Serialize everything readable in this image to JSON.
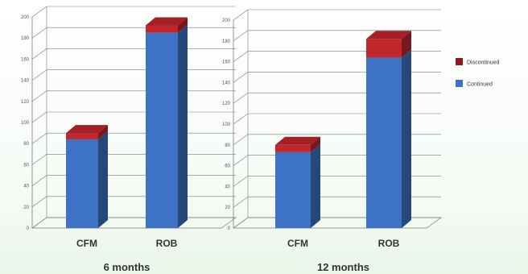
{
  "chart_data": [
    {
      "type": "bar",
      "stacked": true,
      "style": "3d",
      "categories": [
        "CFM",
        "ROB"
      ],
      "series": [
        {
          "name": "Continued",
          "values": [
            84,
            185
          ]
        },
        {
          "name": "Discontinued",
          "values": [
            6,
            7
          ]
        }
      ],
      "ylim": [
        0,
        200
      ],
      "yticks": [
        "0",
        "20",
        "40",
        "60",
        "80",
        "100",
        "120",
        "140",
        "160",
        "180",
        "200"
      ],
      "xlabel": "6 months",
      "colors": {
        "Continued": "#3e72c4",
        "Discontinued": "#c0272d"
      }
    },
    {
      "type": "bar",
      "stacked": true,
      "style": "3d",
      "categories": [
        "CFM",
        "ROB"
      ],
      "series": [
        {
          "name": "Continued",
          "values": [
            73,
            164
          ]
        },
        {
          "name": "Discontinued",
          "values": [
            7,
            18
          ]
        }
      ],
      "ylim": [
        0,
        200
      ],
      "yticks": [
        "0",
        "20",
        "40",
        "60",
        "80",
        "100",
        "120",
        "140",
        "160",
        "180",
        "200"
      ],
      "xlabel": "12 months",
      "colors": {
        "Continued": "#3e72c4",
        "Discontinued": "#c0272d"
      }
    }
  ],
  "legend": {
    "position": "right",
    "items": [
      {
        "label": "Discontinued",
        "color": "#8b1a22"
      },
      {
        "label": "Continued",
        "color": "#3e72c4"
      }
    ]
  }
}
